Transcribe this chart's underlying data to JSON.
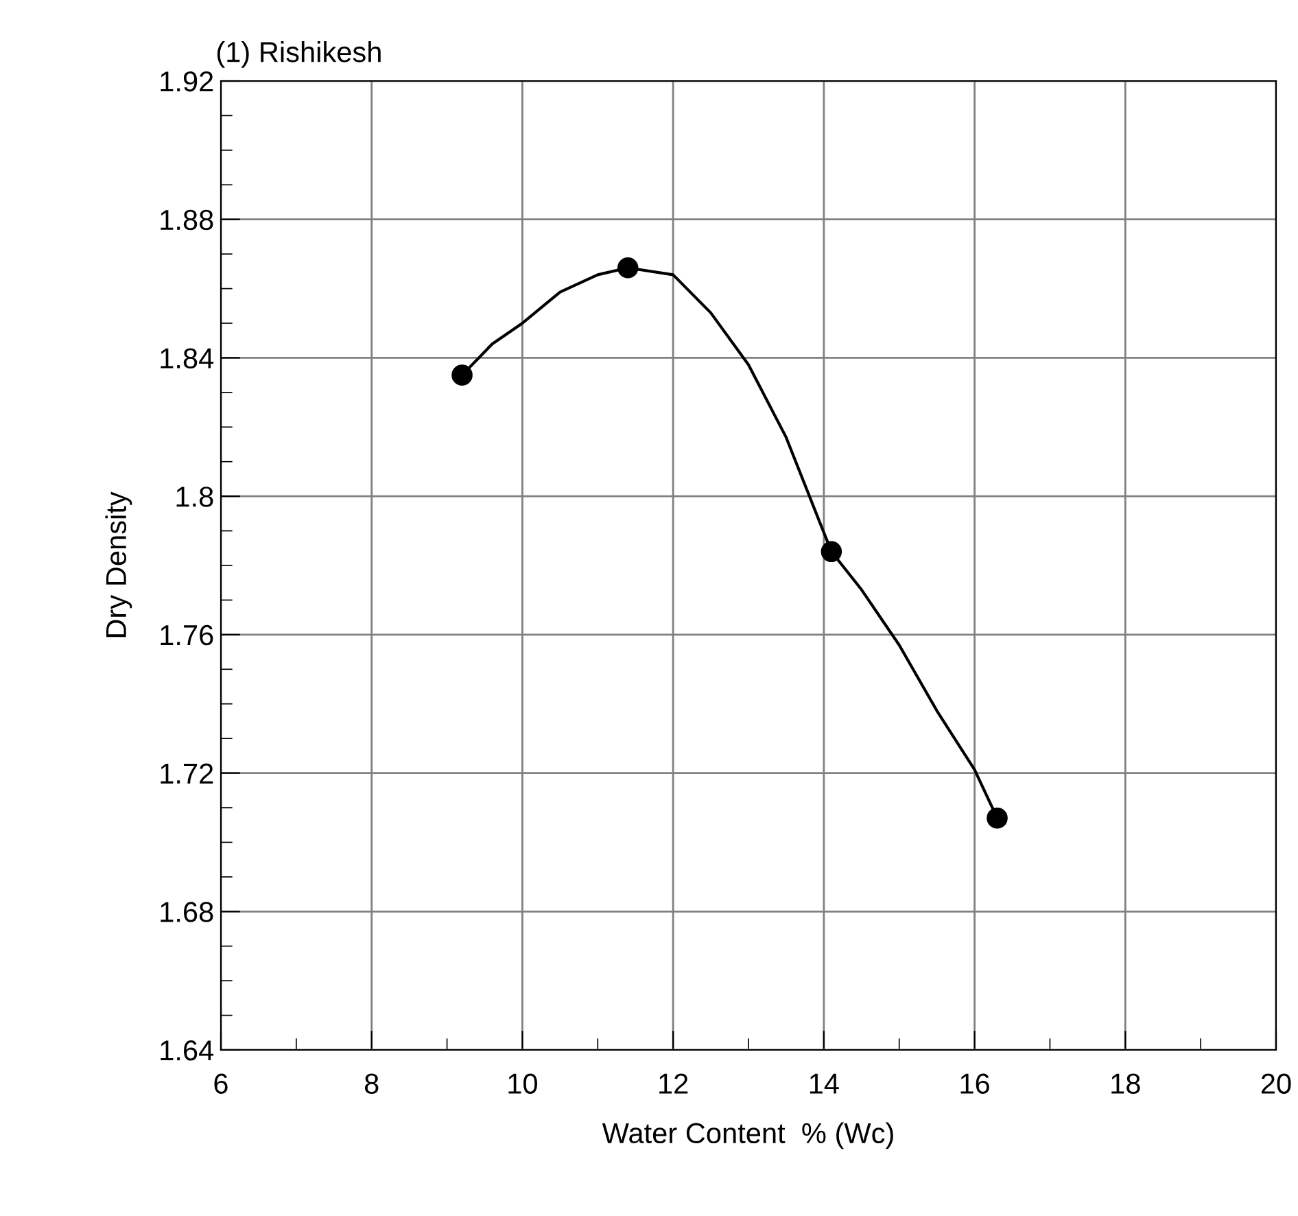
{
  "chart_data": {
    "type": "scatter",
    "title": "(1) Rishikesh",
    "xlabel": "Water Content  % (Wc)",
    "ylabel": "Dry Density",
    "series": [
      {
        "type": "line",
        "marker": "none",
        "color": "#000000",
        "x": [
          9.2,
          9.6,
          10,
          10.5,
          11,
          11.4,
          12,
          12.5,
          13,
          13.5,
          14.1,
          14.5,
          15,
          15.5,
          16,
          16.3
        ],
        "values": [
          1.835,
          1.844,
          1.85,
          1.859,
          1.864,
          1.866,
          1.864,
          1.853,
          1.838,
          1.817,
          1.784,
          1.773,
          1.757,
          1.738,
          1.721,
          1.707
        ]
      },
      {
        "marker": "circle",
        "color": "#000000",
        "x": [
          9.2,
          11.4,
          14.1,
          16.3
        ],
        "values": [
          1.835,
          1.866,
          1.784,
          1.707
        ]
      }
    ],
    "xlim": [
      6,
      20
    ],
    "xticks": [
      6,
      8,
      10,
      12,
      14,
      16,
      18,
      20
    ],
    "ylim": [
      1.64,
      1.92
    ],
    "yticks": [
      1.64,
      1.68,
      1.72,
      1.76,
      1.8,
      1.84,
      1.88,
      1.92
    ],
    "grid": true,
    "line_style": "solid"
  }
}
